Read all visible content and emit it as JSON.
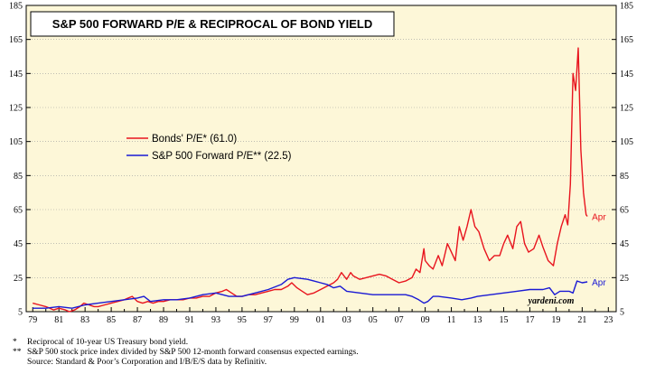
{
  "chart_data": {
    "type": "line",
    "title": "S&P 500 FORWARD P/E & RECIPROCAL OF BOND YIELD",
    "ylim": [
      5,
      185
    ],
    "yticks": [
      5,
      25,
      45,
      65,
      85,
      105,
      125,
      145,
      165,
      185
    ],
    "xlim": [
      1978.5,
      2023.6
    ],
    "xtick_labels": [
      "79",
      "81",
      "83",
      "85",
      "87",
      "89",
      "91",
      "93",
      "95",
      "97",
      "99",
      "01",
      "03",
      "05",
      "07",
      "09",
      "11",
      "13",
      "15",
      "17",
      "19",
      "21",
      "23"
    ],
    "legend_placement": "center-left",
    "source_label": "yardeni.com",
    "series": [
      {
        "name": "Bonds' P/E* (61.0)",
        "color": "#e8141e",
        "end_label": "Apr",
        "x": [
          1979.0,
          1979.5,
          1980.0,
          1980.3,
          1980.6,
          1981.0,
          1981.5,
          1981.8,
          1982.2,
          1982.6,
          1982.9,
          1983.3,
          1983.7,
          1984.0,
          1984.5,
          1985.0,
          1985.5,
          1986.0,
          1986.3,
          1986.6,
          1987.0,
          1987.4,
          1987.8,
          1988.2,
          1988.6,
          1989.0,
          1989.5,
          1990.0,
          1990.5,
          1991.0,
          1991.5,
          1992.0,
          1992.5,
          1993.0,
          1993.5,
          1993.8,
          1994.2,
          1994.6,
          1995.0,
          1995.5,
          1996.0,
          1996.5,
          1997.0,
          1997.5,
          1998.0,
          1998.5,
          1998.8,
          1999.2,
          1999.6,
          2000.0,
          2000.5,
          2001.0,
          2001.5,
          2002.0,
          2002.3,
          2002.6,
          2003.0,
          2003.3,
          2003.5,
          2004.0,
          2004.5,
          2005.0,
          2005.5,
          2006.0,
          2006.5,
          2007.0,
          2007.5,
          2008.0,
          2008.3,
          2008.6,
          2008.9,
          2009.0,
          2009.3,
          2009.6,
          2010.0,
          2010.3,
          2010.7,
          2011.0,
          2011.3,
          2011.6,
          2011.9,
          2012.2,
          2012.5,
          2012.8,
          2013.1,
          2013.5,
          2013.9,
          2014.3,
          2014.7,
          2015.0,
          2015.3,
          2015.7,
          2016.0,
          2016.3,
          2016.6,
          2016.9,
          2017.3,
          2017.7,
          2018.0,
          2018.4,
          2018.8,
          2019.1,
          2019.4,
          2019.7,
          2019.9,
          2020.1,
          2020.3,
          2020.5,
          2020.7,
          2020.9,
          2021.1,
          2021.3,
          2021.4
        ],
        "values": [
          10,
          9,
          8,
          7,
          6,
          7,
          6,
          5,
          6,
          8,
          10,
          9,
          8,
          8,
          9,
          10,
          11,
          12,
          13,
          14,
          11,
          10,
          11,
          10,
          11,
          11,
          12,
          12,
          12,
          13,
          13,
          14,
          14,
          16,
          17,
          18,
          16,
          14,
          14,
          15,
          15,
          16,
          17,
          18,
          18,
          20,
          22,
          19,
          17,
          15,
          16,
          18,
          20,
          22,
          24,
          28,
          24,
          28,
          26,
          24,
          25,
          26,
          27,
          26,
          24,
          22,
          23,
          25,
          30,
          28,
          42,
          35,
          32,
          30,
          38,
          32,
          45,
          40,
          35,
          55,
          47,
          55,
          65,
          55,
          52,
          42,
          35,
          38,
          38,
          45,
          50,
          42,
          55,
          58,
          45,
          40,
          42,
          50,
          43,
          35,
          32,
          45,
          55,
          62,
          56,
          80,
          145,
          135,
          160,
          100,
          75,
          62,
          61
        ]
      },
      {
        "name": "S&P 500 Forward P/E** (22.5)",
        "color": "#1a1ad4",
        "end_label": "Apr",
        "x": [
          1979.0,
          1980.0,
          1981.0,
          1982.0,
          1983.0,
          1984.0,
          1985.0,
          1986.0,
          1987.0,
          1987.5,
          1988.0,
          1989.0,
          1990.0,
          1991.0,
          1992.0,
          1993.0,
          1994.0,
          1995.0,
          1996.0,
          1997.0,
          1998.0,
          1998.5,
          1999.0,
          2000.0,
          2000.5,
          2001.0,
          2001.5,
          2002.0,
          2002.5,
          2003.0,
          2004.0,
          2005.0,
          2006.0,
          2007.0,
          2007.5,
          2008.0,
          2008.5,
          2008.9,
          2009.2,
          2009.6,
          2010.0,
          2011.0,
          2011.8,
          2012.5,
          2013.0,
          2014.0,
          2015.0,
          2016.0,
          2017.0,
          2018.0,
          2018.5,
          2018.9,
          2019.3,
          2020.0,
          2020.3,
          2020.6,
          2021.0,
          2021.4
        ],
        "values": [
          7,
          7,
          8,
          7,
          9,
          10,
          11,
          12,
          13,
          14,
          11,
          12,
          12,
          13,
          15,
          16,
          14,
          14,
          16,
          18,
          21,
          24,
          25,
          24,
          23,
          22,
          21,
          19,
          20,
          17,
          16,
          15,
          15,
          15,
          15,
          14,
          12,
          10,
          11,
          14,
          14,
          13,
          12,
          13,
          14,
          15,
          16,
          17,
          18,
          18,
          19,
          15,
          17,
          17,
          16,
          23,
          22,
          22.5
        ]
      }
    ]
  },
  "footnotes": [
    {
      "marker": "*",
      "text": "Reciprocal of 10-year US Treasury bond yield."
    },
    {
      "marker": "**",
      "text": "S&P 500 stock price index divided by S&P 500 12-month forward consensus expected earnings."
    },
    {
      "marker": "",
      "text": "Source: Standard & Poor’s Corporation and I/B/E/S data by Refinitiv."
    }
  ]
}
